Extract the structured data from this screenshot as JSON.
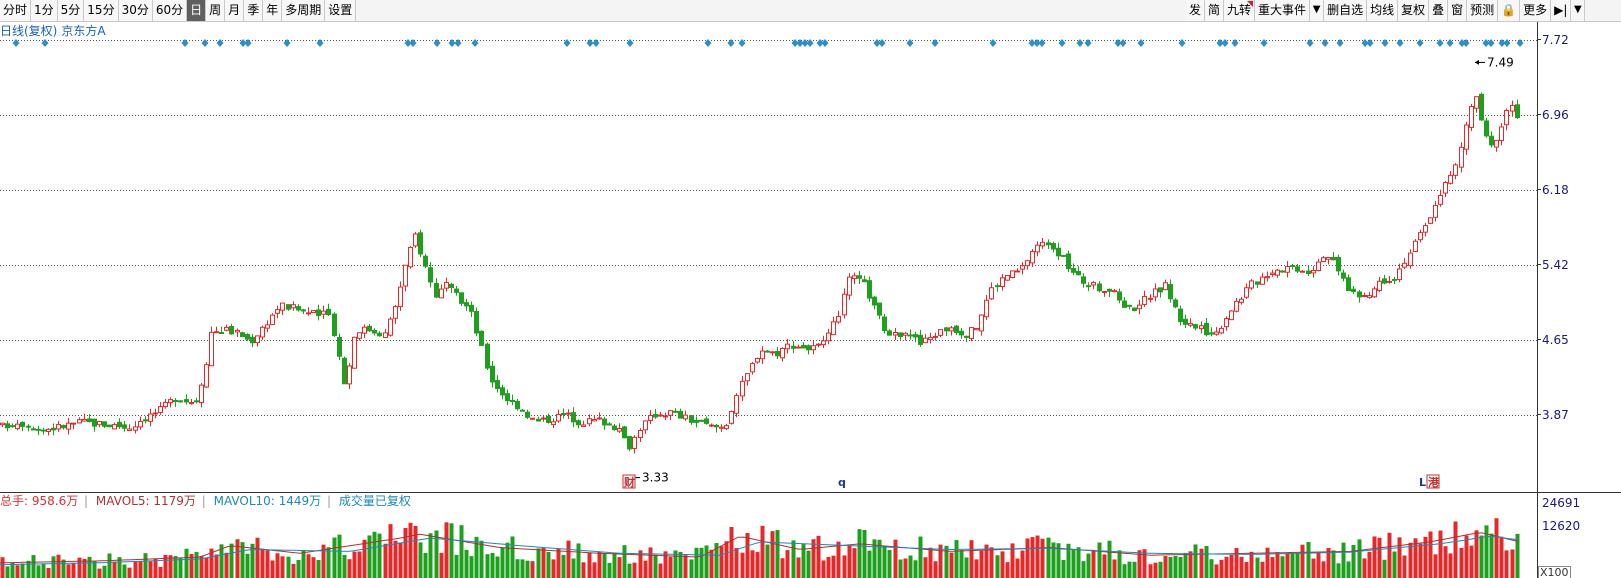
{
  "toolbar": {
    "left": [
      {
        "label": "分时",
        "active": false
      },
      {
        "label": "1分",
        "active": false
      },
      {
        "label": "5分",
        "active": false
      },
      {
        "label": "15分",
        "active": false
      },
      {
        "label": "30分",
        "active": false
      },
      {
        "label": "60分",
        "active": false
      },
      {
        "label": "日",
        "active": true
      },
      {
        "label": "周",
        "active": false
      },
      {
        "label": "月",
        "active": false
      },
      {
        "label": "季",
        "active": false
      },
      {
        "label": "年",
        "active": false
      },
      {
        "label": "多周期",
        "active": false
      },
      {
        "label": "设置",
        "active": false
      }
    ],
    "right": [
      {
        "label": "发",
        "marked": false
      },
      {
        "label": "简",
        "marked": false
      },
      {
        "label": "九转",
        "marked": true
      },
      {
        "label": "重大事件",
        "marked": false
      },
      {
        "label": "▼",
        "marked": false,
        "arrow": true
      },
      {
        "label": "删自选",
        "marked": false
      },
      {
        "label": "均线",
        "marked": false
      },
      {
        "label": "复权",
        "marked": false
      },
      {
        "label": "叠",
        "marked": false
      },
      {
        "label": "窗",
        "marked": false
      },
      {
        "label": "预测",
        "marked": false
      },
      {
        "label": "🔒",
        "marked": false
      },
      {
        "label": "更多",
        "marked": false
      },
      {
        "label": "▶|",
        "marked": false
      },
      {
        "label": "▼",
        "marked": false,
        "arrow": true
      }
    ]
  },
  "price_legend": {
    "kline": "日线(复权)",
    "stock": "京东方A"
  },
  "volume_legend": {
    "total": "总手: 958.6万",
    "mavol5": "MAVOL5: 1179万",
    "mavol10": "MAVOL10: 1449万",
    "rights": "成交量已复权"
  },
  "price_axis": [
    "7.72",
    "6.96",
    "6.18",
    "5.42",
    "4.65",
    "3.87"
  ],
  "volume_axis": [
    "24691",
    "12620"
  ],
  "volume_unit": "X100",
  "annotations": {
    "high": "7.49",
    "low": "3.33"
  },
  "event_markers": [
    "财",
    "q",
    "L",
    "港"
  ],
  "colors": {
    "up": "#e62828",
    "down": "#1ea01e",
    "diamond": "#2a90c8",
    "grid": "#555555",
    "mavol5": "#b03030",
    "mavol10": "#1a8ab8"
  },
  "chart_data": {
    "type": "candlestick",
    "price_ylim": [
      3.2,
      7.8
    ],
    "close_path": [
      [
        0,
        3.75
      ],
      [
        20,
        3.8
      ],
      [
        40,
        3.72
      ],
      [
        60,
        3.75
      ],
      [
        80,
        3.8
      ],
      [
        100,
        3.78
      ],
      [
        120,
        3.76
      ],
      [
        130,
        3.74
      ],
      [
        140,
        3.82
      ],
      [
        160,
        3.92
      ],
      [
        175,
        4.05
      ],
      [
        195,
        4.0
      ],
      [
        205,
        4.35
      ],
      [
        210,
        4.72
      ],
      [
        225,
        4.75
      ],
      [
        240,
        4.7
      ],
      [
        250,
        4.62
      ],
      [
        265,
        4.8
      ],
      [
        280,
        5.0
      ],
      [
        300,
        4.95
      ],
      [
        315,
        4.9
      ],
      [
        330,
        4.9
      ],
      [
        335,
        4.65
      ],
      [
        345,
        4.15
      ],
      [
        355,
        4.75
      ],
      [
        370,
        4.75
      ],
      [
        385,
        4.7
      ],
      [
        395,
        5.0
      ],
      [
        405,
        5.4
      ],
      [
        415,
        5.72
      ],
      [
        425,
        5.4
      ],
      [
        435,
        5.1
      ],
      [
        445,
        5.2
      ],
      [
        455,
        5.1
      ],
      [
        470,
        4.95
      ],
      [
        480,
        4.6
      ],
      [
        490,
        4.25
      ],
      [
        505,
        4.05
      ],
      [
        520,
        3.95
      ],
      [
        535,
        3.8
      ],
      [
        550,
        3.83
      ],
      [
        565,
        3.88
      ],
      [
        580,
        3.8
      ],
      [
        600,
        3.82
      ],
      [
        615,
        3.75
      ],
      [
        630,
        3.55
      ],
      [
        640,
        3.75
      ],
      [
        655,
        3.88
      ],
      [
        670,
        3.9
      ],
      [
        690,
        3.82
      ],
      [
        710,
        3.75
      ],
      [
        725,
        3.75
      ],
      [
        735,
        4.05
      ],
      [
        745,
        4.25
      ],
      [
        760,
        4.55
      ],
      [
        775,
        4.5
      ],
      [
        790,
        4.6
      ],
      [
        810,
        4.55
      ],
      [
        825,
        4.6
      ],
      [
        840,
        4.95
      ],
      [
        850,
        5.3
      ],
      [
        865,
        5.2
      ],
      [
        875,
        4.95
      ],
      [
        890,
        4.65
      ],
      [
        905,
        4.75
      ],
      [
        920,
        4.6
      ],
      [
        935,
        4.7
      ],
      [
        950,
        4.78
      ],
      [
        965,
        4.7
      ],
      [
        975,
        4.75
      ],
      [
        990,
        5.15
      ],
      [
        1005,
        5.3
      ],
      [
        1020,
        5.35
      ],
      [
        1035,
        5.6
      ],
      [
        1050,
        5.65
      ],
      [
        1060,
        5.5
      ],
      [
        1075,
        5.3
      ],
      [
        1090,
        5.2
      ],
      [
        1110,
        5.15
      ],
      [
        1130,
        4.95
      ],
      [
        1150,
        5.1
      ],
      [
        1165,
        5.2
      ],
      [
        1180,
        4.85
      ],
      [
        1200,
        4.75
      ],
      [
        1215,
        4.7
      ],
      [
        1230,
        4.95
      ],
      [
        1250,
        5.2
      ],
      [
        1270,
        5.35
      ],
      [
        1290,
        5.4
      ],
      [
        1310,
        5.35
      ],
      [
        1325,
        5.55
      ],
      [
        1335,
        5.4
      ],
      [
        1350,
        5.15
      ],
      [
        1365,
        5.05
      ],
      [
        1380,
        5.25
      ],
      [
        1395,
        5.3
      ],
      [
        1410,
        5.55
      ],
      [
        1425,
        5.8
      ],
      [
        1440,
        6.15
      ],
      [
        1455,
        6.4
      ],
      [
        1465,
        6.8
      ],
      [
        1475,
        7.2
      ],
      [
        1480,
        6.9
      ],
      [
        1490,
        6.6
      ],
      [
        1500,
        6.8
      ],
      [
        1510,
        7.1
      ],
      [
        1518,
        6.9
      ]
    ],
    "high": {
      "value": 7.49,
      "x": 1475
    },
    "low": {
      "value": 3.33,
      "x": 630
    },
    "mavol5_path": [
      [
        0,
        0.4
      ],
      [
        100,
        0.45
      ],
      [
        200,
        0.55
      ],
      [
        230,
        0.85
      ],
      [
        300,
        0.65
      ],
      [
        400,
        1.05
      ],
      [
        420,
        1.15
      ],
      [
        500,
        0.8
      ],
      [
        600,
        0.65
      ],
      [
        700,
        0.55
      ],
      [
        740,
        1.1
      ],
      [
        800,
        0.75
      ],
      [
        860,
        0.9
      ],
      [
        950,
        0.7
      ],
      [
        1050,
        0.8
      ],
      [
        1150,
        0.6
      ],
      [
        1250,
        0.65
      ],
      [
        1350,
        0.7
      ],
      [
        1430,
        0.95
      ],
      [
        1480,
        1.2
      ],
      [
        1520,
        0.95
      ]
    ],
    "mavol10_path": [
      [
        0,
        0.35
      ],
      [
        100,
        0.4
      ],
      [
        200,
        0.5
      ],
      [
        250,
        0.75
      ],
      [
        350,
        0.7
      ],
      [
        430,
        1.05
      ],
      [
        520,
        0.85
      ],
      [
        620,
        0.65
      ],
      [
        720,
        0.6
      ],
      [
        760,
        0.95
      ],
      [
        850,
        0.85
      ],
      [
        950,
        0.75
      ],
      [
        1050,
        0.78
      ],
      [
        1150,
        0.65
      ],
      [
        1250,
        0.62
      ],
      [
        1350,
        0.68
      ],
      [
        1440,
        0.9
      ],
      [
        1490,
        1.1
      ],
      [
        1520,
        1.0
      ]
    ]
  }
}
